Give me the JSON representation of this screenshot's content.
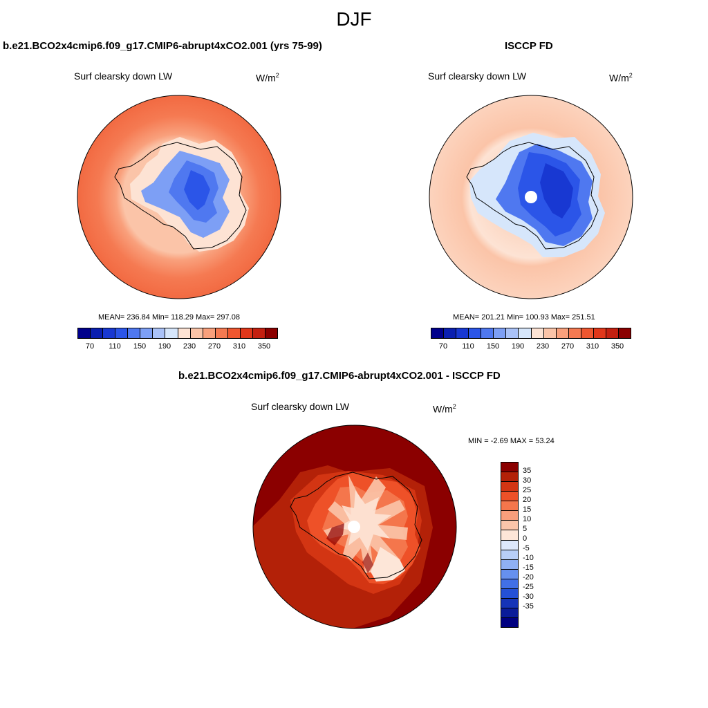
{
  "season": "DJF",
  "panels": [
    {
      "title": "b.e21.BCO2x4cmip6.f09_g17.CMIP6-abrupt4xCO2.001 (yrs 75-99)",
      "variable": "Surf clearsky down LW",
      "units": "W/m",
      "units_sup": "2",
      "stats": "MEAN= 236.84  Min= 118.29  Max= 297.08"
    },
    {
      "title": "ISCCP FD",
      "variable": "Surf clearsky down LW",
      "units": "W/m",
      "units_sup": "2",
      "stats": "MEAN= 201.21  Min= 100.93  Max= 251.51"
    }
  ],
  "diff": {
    "title": "b.e21.BCO2x4cmip6.f09_g17.CMIP6-abrupt4xCO2.001 - ISCCP FD",
    "variable": "Surf clearsky down LW",
    "units": "W/m",
    "units_sup": "2",
    "stats": "MIN =  -2.69 MAX =  53.24"
  },
  "colorbar_main": {
    "colors": [
      "#00008b",
      "#0a1fb0",
      "#1838d2",
      "#2b55e8",
      "#4f78f0",
      "#7d9ff5",
      "#aac2f8",
      "#d6e6fb",
      "#fde3d4",
      "#fbc4a8",
      "#f9a07c",
      "#f57a52",
      "#ef5730",
      "#e1371a",
      "#c42010",
      "#8b0000"
    ],
    "ticks": [
      "70",
      "110",
      "150",
      "190",
      "230",
      "270",
      "310",
      "350"
    ]
  },
  "colorbar_diff": {
    "colors": [
      "#8b0000",
      "#b32108",
      "#d33513",
      "#ee5128",
      "#f4764c",
      "#f89e7c",
      "#fbc5aa",
      "#fde6d8",
      "#dde8fb",
      "#b8cff8",
      "#8fb0f3",
      "#6690ee",
      "#4270e6",
      "#2450d6",
      "#1534b8",
      "#0a1c99",
      "#000080"
    ],
    "ticks": [
      "35",
      "30",
      "25",
      "20",
      "15",
      "10",
      "5",
      "0",
      "-5",
      "-10",
      "-15",
      "-20",
      "-25",
      "-30",
      "-35"
    ]
  }
}
